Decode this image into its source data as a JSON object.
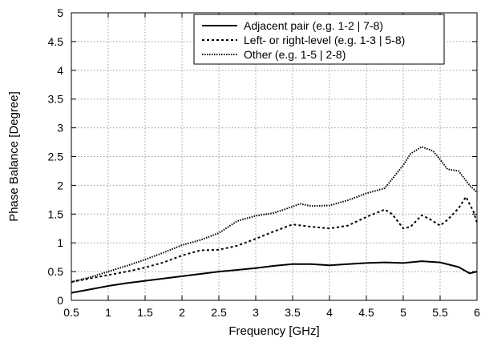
{
  "chart_data": {
    "type": "line",
    "xlabel": "Frequency [GHz]",
    "ylabel": "Phase Balance [Degree]",
    "xlim": [
      0.5,
      6
    ],
    "ylim": [
      0,
      5
    ],
    "x_ticks": [
      "0.5",
      "1",
      "1.5",
      "2",
      "2.5",
      "3",
      "3.5",
      "4",
      "4.5",
      "5",
      "5.5",
      "6"
    ],
    "y_ticks": [
      "0",
      "0.5",
      "1",
      "1.5",
      "2",
      "2.5",
      "3",
      "3.5",
      "4",
      "4.5",
      "5"
    ],
    "grid": true,
    "legend_position": "top-right",
    "series": [
      {
        "name": "Adjacent pair (e.g. 1-2 | 7-8)",
        "style": "solid",
        "x": [
          0.5,
          0.75,
          1.0,
          1.25,
          1.5,
          1.75,
          2.0,
          2.25,
          2.5,
          2.75,
          3.0,
          3.25,
          3.5,
          3.75,
          4.0,
          4.25,
          4.5,
          4.75,
          5.0,
          5.25,
          5.5,
          5.75,
          5.9,
          6.0
        ],
        "y": [
          0.13,
          0.19,
          0.25,
          0.3,
          0.34,
          0.38,
          0.42,
          0.46,
          0.5,
          0.53,
          0.56,
          0.6,
          0.63,
          0.63,
          0.61,
          0.63,
          0.65,
          0.66,
          0.65,
          0.68,
          0.66,
          0.58,
          0.47,
          0.5
        ]
      },
      {
        "name": "Left- or right-level (e.g. 1-3 | 5-8)",
        "style": "dashed",
        "x": [
          0.5,
          0.75,
          1.0,
          1.25,
          1.5,
          1.75,
          2.0,
          2.25,
          2.5,
          2.75,
          3.0,
          3.25,
          3.5,
          3.75,
          4.0,
          4.25,
          4.5,
          4.75,
          4.85,
          5.0,
          5.1,
          5.25,
          5.35,
          5.5,
          5.6,
          5.75,
          5.85,
          5.95,
          6.0
        ],
        "y": [
          0.32,
          0.38,
          0.44,
          0.5,
          0.57,
          0.66,
          0.78,
          0.87,
          0.88,
          0.95,
          1.07,
          1.2,
          1.32,
          1.28,
          1.25,
          1.3,
          1.45,
          1.58,
          1.5,
          1.25,
          1.28,
          1.48,
          1.42,
          1.3,
          1.4,
          1.6,
          1.8,
          1.55,
          1.35
        ]
      },
      {
        "name": "Other (e.g. 1-5 | 2-8)",
        "style": "dotted",
        "x": [
          0.5,
          0.75,
          1.0,
          1.25,
          1.5,
          1.75,
          2.0,
          2.25,
          2.5,
          2.75,
          3.0,
          3.25,
          3.5,
          3.6,
          3.75,
          4.0,
          4.25,
          4.5,
          4.75,
          5.0,
          5.1,
          5.25,
          5.4,
          5.5,
          5.6,
          5.75,
          5.9,
          6.0
        ],
        "y": [
          0.32,
          0.4,
          0.5,
          0.6,
          0.71,
          0.83,
          0.96,
          1.05,
          1.17,
          1.38,
          1.47,
          1.52,
          1.63,
          1.68,
          1.64,
          1.65,
          1.74,
          1.86,
          1.95,
          2.35,
          2.55,
          2.67,
          2.6,
          2.45,
          2.28,
          2.25,
          2.0,
          1.88
        ]
      }
    ]
  }
}
